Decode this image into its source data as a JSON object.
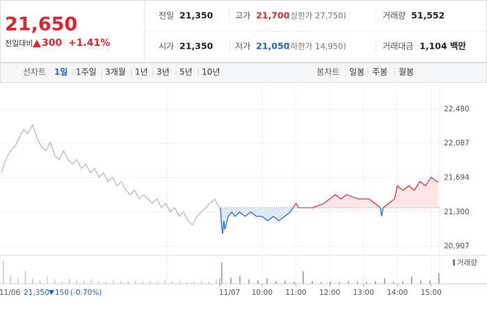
{
  "header": {
    "price": "21,650",
    "change_label": "전일대비",
    "change": "300",
    "change_pct": "+1.41%"
  },
  "stats": [
    {
      "label": "전일",
      "value": "21,350"
    },
    {
      "label": "고가",
      "value": "21,700",
      "note": "(상한가 27,750)"
    },
    {
      "label": "거래량",
      "value": "51,552"
    },
    {
      "label": "시가",
      "value": "21,350"
    },
    {
      "label": "저가",
      "value": "21,050",
      "note": "(하한가 14,950)"
    },
    {
      "label": "거래대금",
      "value": "1,104 백만"
    }
  ],
  "tabs": {
    "line_label": "선차트",
    "line": [
      "1일",
      "1주일",
      "3개월",
      "1년",
      "3년",
      "5년",
      "10년"
    ],
    "candle_label": "봉차트",
    "candle": [
      "일봉",
      "주봉",
      "월봉"
    ]
  },
  "chart_data": {
    "type": "line",
    "ylim": [
      20820,
      22735
    ],
    "yticks": [
      {
        "value": 22480,
        "label": "22,480"
      },
      {
        "value": 22087,
        "label": "22,087"
      },
      {
        "value": 21694,
        "label": "21,694"
      },
      {
        "value": 21300,
        "label": "21,300"
      },
      {
        "value": 20907,
        "label": "20,907"
      }
    ],
    "xlim": [
      -15,
      390
    ],
    "xticks": [
      {
        "value": 60,
        "label": "10:00"
      },
      {
        "value": 120,
        "label": "11:00"
      },
      {
        "value": 180,
        "label": "12:00"
      },
      {
        "value": 240,
        "label": "13:00"
      },
      {
        "value": 300,
        "label": "14:00"
      },
      {
        "value": 360,
        "label": "15:00"
      }
    ],
    "baseline": 21350,
    "grid": true,
    "series": [
      {
        "name": "11/06",
        "color": "#b8b8b8",
        "values": [
          21750,
          21900,
          22000,
          22050,
          22150,
          22250,
          22200,
          22300,
          22150,
          22050,
          22000,
          22100,
          21950,
          21900,
          22000,
          21900,
          21850,
          21900,
          21800,
          21850,
          21750,
          21800,
          21700,
          21750,
          21650,
          21700,
          21600,
          21650,
          21550,
          21500,
          21550,
          21450,
          21500,
          21450,
          21400,
          21450,
          21350,
          21400,
          21300,
          21350,
          21250,
          21300,
          21200,
          21150,
          21250,
          21300,
          21350,
          21400,
          21450,
          21350
        ]
      },
      {
        "name": "11/07",
        "color_up": "#e0353b",
        "color_down": "#2a6ad6",
        "x": [
          -14,
          -12,
          -10,
          -8,
          -6,
          -4,
          0,
          6,
          12,
          20,
          30,
          40,
          50,
          60,
          70,
          80,
          90,
          100,
          110,
          115,
          120,
          125,
          150,
          170,
          180,
          190,
          200,
          210,
          230,
          250,
          260,
          270,
          272,
          275,
          285,
          295,
          300,
          310,
          320,
          330,
          340,
          350,
          360,
          370,
          373
        ],
        "values": [
          21350,
          21150,
          21050,
          21200,
          21100,
          21150,
          21250,
          21300,
          21250,
          21300,
          21250,
          21300,
          21250,
          21250,
          21200,
          21250,
          21200,
          21250,
          21300,
          21350,
          21400,
          21350,
          21350,
          21400,
          21450,
          21500,
          21450,
          21500,
          21450,
          21450,
          21400,
          21350,
          21250,
          21350,
          21400,
          21450,
          21600,
          21550,
          21600,
          21550,
          21650,
          21600,
          21700,
          21650,
          21650
        ]
      }
    ],
    "summary": {
      "price": "21,350",
      "change": "150",
      "change_pct": "(-0.70%)"
    },
    "volume": {
      "name": "거래량",
      "ylim": [
        0,
        3000
      ],
      "prev_values": [
        2600,
        900,
        700,
        1500,
        600,
        400,
        800,
        500,
        300,
        600,
        400,
        350,
        500,
        300,
        250,
        400,
        300,
        200,
        350,
        250,
        300,
        200,
        400,
        250,
        300,
        200,
        250,
        350,
        300,
        500
      ],
      "values": [
        2400,
        700,
        900,
        500,
        400,
        600,
        300,
        350,
        250,
        1400,
        300,
        200,
        250,
        200,
        300,
        250,
        200,
        300,
        600,
        250,
        300,
        800,
        350,
        400,
        1200
      ]
    }
  }
}
